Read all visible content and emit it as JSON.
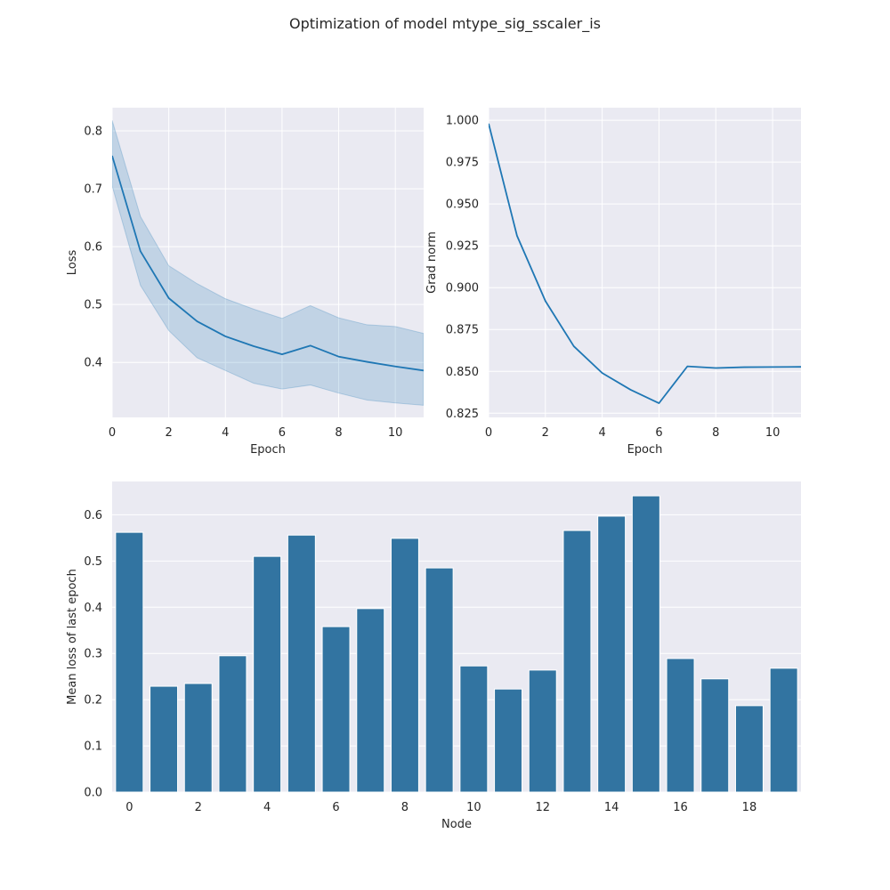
{
  "figure": {
    "title": "Optimization of model mtype_sig_sscaler_is"
  },
  "colors": {
    "axes_bg": "#eaeaf2",
    "grid": "#ffffff",
    "line": "#1f77b4",
    "band": "#1f77b4",
    "bar": "#3274a1"
  },
  "chart_data": [
    {
      "type": "line",
      "xlabel": "Epoch",
      "ylabel": "Loss",
      "xlim": [
        0,
        11
      ],
      "ylim": [
        0.305,
        0.84
      ],
      "grid": true,
      "xticks": [
        0,
        2,
        4,
        6,
        8,
        10
      ],
      "yticks": [
        0.4,
        0.5,
        0.6,
        0.7,
        0.8
      ],
      "x": [
        0,
        1,
        2,
        3,
        4,
        5,
        6,
        7,
        8,
        9,
        10,
        11
      ],
      "series": [
        {
          "values": [
            0.757,
            0.592,
            0.511,
            0.471,
            0.445,
            0.428,
            0.414,
            0.429,
            0.41,
            0.401,
            0.393,
            0.386
          ],
          "lower": [
            0.705,
            0.533,
            0.455,
            0.408,
            0.386,
            0.364,
            0.354,
            0.361,
            0.347,
            0.335,
            0.33,
            0.326
          ],
          "upper": [
            0.818,
            0.652,
            0.567,
            0.536,
            0.51,
            0.492,
            0.476,
            0.498,
            0.477,
            0.465,
            0.462,
            0.45
          ]
        }
      ]
    },
    {
      "type": "line",
      "xlabel": "Epoch",
      "ylabel": "Grad norm",
      "xlim": [
        0,
        11
      ],
      "ylim": [
        0.8225,
        1.0075
      ],
      "grid": true,
      "xticks": [
        0,
        2,
        4,
        6,
        8,
        10
      ],
      "yticks": [
        0.825,
        0.85,
        0.875,
        0.9,
        0.925,
        0.95,
        0.975,
        1.0
      ],
      "ytick_labels": [
        "0.825",
        "0.850",
        "0.875",
        "0.900",
        "0.925",
        "0.950",
        "0.975",
        "1.000"
      ],
      "x": [
        0,
        1,
        2,
        3,
        4,
        5,
        6,
        7,
        8,
        9,
        10,
        11
      ],
      "series": [
        {
          "values": [
            0.998,
            0.931,
            0.892,
            0.865,
            0.849,
            0.839,
            0.831,
            0.853,
            0.852,
            0.8525,
            0.8526,
            0.8527
          ]
        }
      ]
    },
    {
      "type": "bar",
      "xlabel": "Node",
      "ylabel": "Mean loss of last epoch",
      "ylim": [
        0,
        0.672
      ],
      "grid": true,
      "categories": [
        0,
        1,
        2,
        3,
        4,
        5,
        6,
        7,
        8,
        9,
        10,
        11,
        12,
        13,
        14,
        15,
        16,
        17,
        18,
        19
      ],
      "xtick_labels": [
        "0",
        "2",
        "4",
        "6",
        "8",
        "10",
        "12",
        "14",
        "16",
        "18"
      ],
      "xtick_positions": [
        0,
        2,
        4,
        6,
        8,
        10,
        12,
        14,
        16,
        18
      ],
      "yticks": [
        0.0,
        0.1,
        0.2,
        0.3,
        0.4,
        0.5,
        0.6
      ],
      "values": [
        0.562,
        0.229,
        0.235,
        0.295,
        0.51,
        0.556,
        0.358,
        0.397,
        0.549,
        0.485,
        0.273,
        0.223,
        0.264,
        0.566,
        0.597,
        0.641,
        0.289,
        0.245,
        0.187,
        0.268
      ]
    }
  ]
}
